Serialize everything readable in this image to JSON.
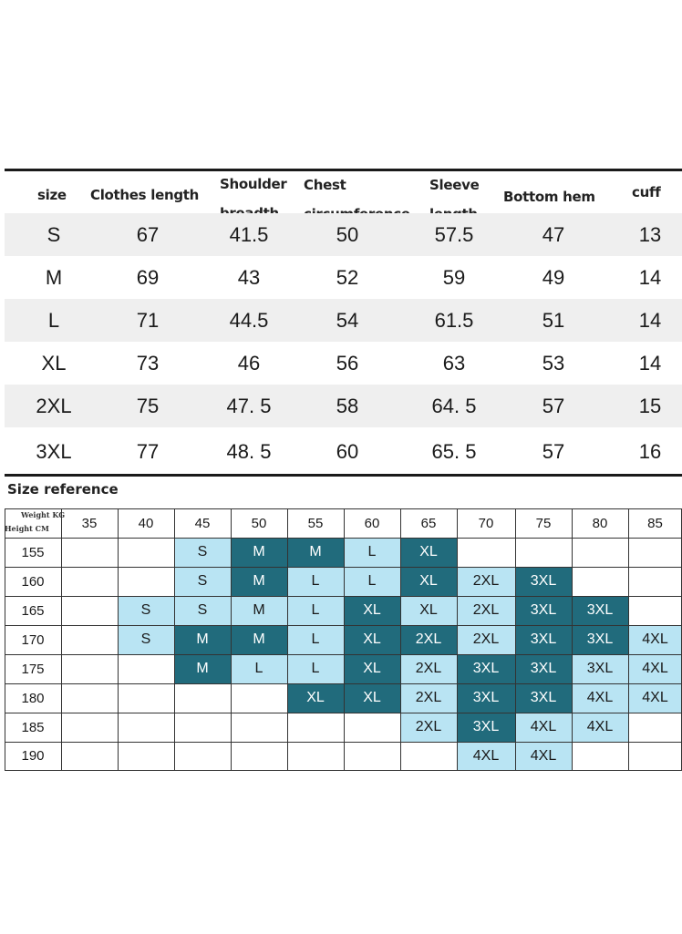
{
  "size_table": {
    "headers": {
      "size": "size",
      "clothes_length": "Clothes length",
      "shoulder_1": "Shoulder",
      "shoulder_2": "breadth",
      "chest_1": "Chest",
      "chest_2": "circumference",
      "sleeve_1": "Sleeve",
      "sleeve_2": "length",
      "bottom_hem": "Bottom hem",
      "cuff": "cuff"
    },
    "rows": [
      [
        "S",
        "67",
        "41.5",
        "50",
        "57.5",
        "47",
        "13"
      ],
      [
        "M",
        "69",
        "43",
        "52",
        "59",
        "49",
        "14"
      ],
      [
        "L",
        "71",
        "44.5",
        "54",
        "61.5",
        "51",
        "14"
      ],
      [
        "XL",
        "73",
        "46",
        "56",
        "63",
        "53",
        "14"
      ],
      [
        "2XL",
        "75",
        "47. 5",
        "58",
        "64. 5",
        "57",
        "15"
      ],
      [
        "3XL",
        "77",
        "48. 5",
        "60",
        "65. 5",
        "57",
        "16"
      ]
    ]
  },
  "size_reference": {
    "title": "Size reference",
    "corner_weight": "Weight KG",
    "corner_height": "Height CM",
    "weights": [
      "35",
      "40",
      "45",
      "50",
      "55",
      "60",
      "65",
      "70",
      "75",
      "80",
      "85"
    ],
    "heights": [
      "155",
      "160",
      "165",
      "170",
      "175",
      "180",
      "185",
      "190"
    ],
    "cells": [
      [
        [
          "",
          ""
        ],
        [
          "",
          ""
        ],
        [
          "S",
          "light"
        ],
        [
          "M",
          "dark"
        ],
        [
          "M",
          "dark"
        ],
        [
          "L",
          "light"
        ],
        [
          "XL",
          "dark"
        ],
        [
          "",
          ""
        ],
        [
          "",
          ""
        ],
        [
          "",
          ""
        ],
        [
          "",
          ""
        ]
      ],
      [
        [
          "",
          ""
        ],
        [
          "",
          ""
        ],
        [
          "S",
          "light"
        ],
        [
          "M",
          "dark"
        ],
        [
          "L",
          "light"
        ],
        [
          "L",
          "light"
        ],
        [
          "XL",
          "dark"
        ],
        [
          "2XL",
          "light"
        ],
        [
          "3XL",
          "dark"
        ],
        [
          "",
          ""
        ],
        [
          "",
          ""
        ]
      ],
      [
        [
          "",
          ""
        ],
        [
          "S",
          "light"
        ],
        [
          "S",
          "light"
        ],
        [
          "M",
          "light"
        ],
        [
          "L",
          "light"
        ],
        [
          "XL",
          "dark"
        ],
        [
          "XL",
          "light"
        ],
        [
          "2XL",
          "light"
        ],
        [
          "3XL",
          "dark"
        ],
        [
          "3XL",
          "dark"
        ],
        [
          "",
          ""
        ]
      ],
      [
        [
          "",
          ""
        ],
        [
          "S",
          "light"
        ],
        [
          "M",
          "dark"
        ],
        [
          "M",
          "dark"
        ],
        [
          "L",
          "light"
        ],
        [
          "XL",
          "dark"
        ],
        [
          "2XL",
          "dark"
        ],
        [
          "2XL",
          "light"
        ],
        [
          "3XL",
          "dark"
        ],
        [
          "3XL",
          "dark"
        ],
        [
          "4XL",
          "light"
        ]
      ],
      [
        [
          "",
          ""
        ],
        [
          "",
          ""
        ],
        [
          "M",
          "dark"
        ],
        [
          "L",
          "light"
        ],
        [
          "L",
          "light"
        ],
        [
          "XL",
          "dark"
        ],
        [
          "2XL",
          "light"
        ],
        [
          "3XL",
          "dark"
        ],
        [
          "3XL",
          "dark"
        ],
        [
          "3XL",
          "light"
        ],
        [
          "4XL",
          "light"
        ]
      ],
      [
        [
          "",
          ""
        ],
        [
          "",
          ""
        ],
        [
          "",
          ""
        ],
        [
          "",
          ""
        ],
        [
          "XL",
          "dark"
        ],
        [
          "XL",
          "dark"
        ],
        [
          "2XL",
          "light"
        ],
        [
          "3XL",
          "dark"
        ],
        [
          "3XL",
          "dark"
        ],
        [
          "4XL",
          "light"
        ],
        [
          "4XL",
          "light"
        ]
      ],
      [
        [
          "",
          ""
        ],
        [
          "",
          ""
        ],
        [
          "",
          ""
        ],
        [
          "",
          ""
        ],
        [
          "",
          ""
        ],
        [
          "",
          ""
        ],
        [
          "2XL",
          "light"
        ],
        [
          "3XL",
          "dark"
        ],
        [
          "4XL",
          "light"
        ],
        [
          "4XL",
          "light"
        ],
        [
          "",
          ""
        ]
      ],
      [
        [
          "",
          ""
        ],
        [
          "",
          ""
        ],
        [
          "",
          ""
        ],
        [
          "",
          ""
        ],
        [
          "",
          ""
        ],
        [
          "",
          ""
        ],
        [
          "",
          ""
        ],
        [
          "4XL",
          "light"
        ],
        [
          "4XL",
          "light"
        ],
        [
          "",
          ""
        ],
        [
          "",
          ""
        ]
      ]
    ]
  },
  "colors": {
    "dark": "#216b7c",
    "light": "#b9e4f3",
    "row_shade": "#efefef"
  }
}
